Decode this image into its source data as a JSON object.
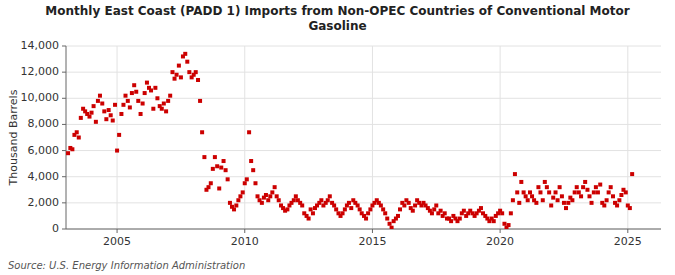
{
  "chart_data": {
    "type": "scatter",
    "title": "Monthly East Coast (PADD 1) Imports from Non-OPEC Countries of Conventional Motor\nGasoline",
    "ylabel": "Thousand Barrels",
    "source": "Source: U.S. Energy Information Administration",
    "color": "#cc0000",
    "marker": "square",
    "grid": true,
    "xlim": [
      2003.0,
      2026.3
    ],
    "xticks": [
      2005,
      2010,
      2015,
      2020,
      2025
    ],
    "ylim": [
      0,
      14000
    ],
    "yticks": [
      0,
      {
        "value": 2000,
        "label": "2,000"
      },
      {
        "value": 4000,
        "label": "4,000"
      },
      {
        "value": 6000,
        "label": "6,000"
      },
      {
        "value": 8000,
        "label": "8,000"
      },
      {
        "value": 10000,
        "label": "10,000"
      },
      {
        "value": 12000,
        "label": "12,000"
      },
      {
        "value": 14000,
        "label": "14,000"
      }
    ],
    "x": [
      2003.08,
      2003.17,
      2003.25,
      2003.33,
      2003.42,
      2003.5,
      2003.58,
      2003.67,
      2003.75,
      2003.83,
      2003.92,
      2004.0,
      2004.08,
      2004.17,
      2004.25,
      2004.33,
      2004.42,
      2004.5,
      2004.58,
      2004.67,
      2004.75,
      2004.83,
      2004.92,
      2005.0,
      2005.08,
      2005.17,
      2005.25,
      2005.33,
      2005.42,
      2005.5,
      2005.58,
      2005.67,
      2005.75,
      2005.83,
      2005.92,
      2006.0,
      2006.08,
      2006.17,
      2006.25,
      2006.33,
      2006.42,
      2006.5,
      2006.58,
      2006.67,
      2006.75,
      2006.83,
      2006.92,
      2007.0,
      2007.08,
      2007.17,
      2007.25,
      2007.33,
      2007.42,
      2007.5,
      2007.58,
      2007.67,
      2007.75,
      2007.83,
      2007.92,
      2008.0,
      2008.08,
      2008.17,
      2008.25,
      2008.33,
      2008.42,
      2008.5,
      2008.58,
      2008.67,
      2008.75,
      2008.83,
      2008.92,
      2009.0,
      2009.08,
      2009.17,
      2009.25,
      2009.33,
      2009.42,
      2009.5,
      2009.58,
      2009.67,
      2009.75,
      2009.83,
      2009.92,
      2010.0,
      2010.08,
      2010.17,
      2010.25,
      2010.33,
      2010.42,
      2010.5,
      2010.58,
      2010.67,
      2010.75,
      2010.83,
      2010.92,
      2011.0,
      2011.08,
      2011.17,
      2011.25,
      2011.33,
      2011.42,
      2011.5,
      2011.58,
      2011.67,
      2011.75,
      2011.83,
      2011.92,
      2012.0,
      2012.08,
      2012.17,
      2012.25,
      2012.33,
      2012.42,
      2012.5,
      2012.58,
      2012.67,
      2012.75,
      2012.83,
      2012.92,
      2013.0,
      2013.08,
      2013.17,
      2013.25,
      2013.33,
      2013.42,
      2013.5,
      2013.58,
      2013.67,
      2013.75,
      2013.83,
      2013.92,
      2014.0,
      2014.08,
      2014.17,
      2014.25,
      2014.33,
      2014.42,
      2014.5,
      2014.58,
      2014.67,
      2014.75,
      2014.83,
      2014.92,
      2015.0,
      2015.08,
      2015.17,
      2015.25,
      2015.33,
      2015.42,
      2015.5,
      2015.58,
      2015.67,
      2015.75,
      2015.83,
      2015.92,
      2016.0,
      2016.08,
      2016.17,
      2016.25,
      2016.33,
      2016.42,
      2016.5,
      2016.58,
      2016.67,
      2016.75,
      2016.83,
      2016.92,
      2017.0,
      2017.08,
      2017.17,
      2017.25,
      2017.33,
      2017.42,
      2017.5,
      2017.58,
      2017.67,
      2017.75,
      2017.83,
      2017.92,
      2018.0,
      2018.08,
      2018.17,
      2018.25,
      2018.33,
      2018.42,
      2018.5,
      2018.58,
      2018.67,
      2018.75,
      2018.83,
      2018.92,
      2019.0,
      2019.08,
      2019.17,
      2019.25,
      2019.33,
      2019.42,
      2019.5,
      2019.58,
      2019.67,
      2019.75,
      2019.83,
      2019.92,
      2020.0,
      2020.08,
      2020.17,
      2020.25,
      2020.33,
      2020.42,
      2020.5,
      2020.58,
      2020.67,
      2020.75,
      2020.83,
      2020.92,
      2021.0,
      2021.08,
      2021.17,
      2021.25,
      2021.33,
      2021.42,
      2021.5,
      2021.58,
      2021.67,
      2021.75,
      2021.83,
      2021.92,
      2022.0,
      2022.08,
      2022.17,
      2022.25,
      2022.33,
      2022.42,
      2022.5,
      2022.58,
      2022.67,
      2022.75,
      2022.83,
      2022.92,
      2023.0,
      2023.08,
      2023.17,
      2023.25,
      2023.33,
      2023.42,
      2023.5,
      2023.58,
      2023.67,
      2023.75,
      2023.83,
      2023.92,
      2024.0,
      2024.08,
      2024.17,
      2024.25,
      2024.33,
      2024.42,
      2024.5,
      2024.58,
      2024.67,
      2024.75,
      2024.83,
      2024.92,
      2025.0,
      2025.08,
      2025.17
    ],
    "values": [
      5800,
      6200,
      6100,
      7200,
      7400,
      7000,
      8500,
      9200,
      9000,
      8800,
      8600,
      8900,
      9400,
      8200,
      9800,
      10200,
      9600,
      9000,
      8400,
      9100,
      8700,
      8300,
      9500,
      6000,
      7200,
      8800,
      9500,
      10200,
      9800,
      9300,
      10400,
      11000,
      10500,
      9800,
      8800,
      9600,
      10400,
      11200,
      10800,
      10600,
      9200,
      10800,
      10000,
      9400,
      9200,
      9600,
      9000,
      9800,
      10200,
      12000,
      11500,
      11800,
      12500,
      11600,
      13200,
      13400,
      12800,
      12000,
      11600,
      11800,
      12000,
      11400,
      9800,
      7400,
      5500,
      3000,
      3200,
      3500,
      4600,
      5500,
      4800,
      3100,
      4700,
      5200,
      4500,
      3800,
      2000,
      1700,
      1500,
      1800,
      2200,
      2500,
      2800,
      3500,
      3800,
      7400,
      5200,
      4500,
      3500,
      2500,
      2200,
      2000,
      2400,
      2600,
      2200,
      2500,
      2800,
      3200,
      2500,
      2200,
      1800,
      1600,
      1400,
      1500,
      1800,
      2000,
      2200,
      2500,
      2200,
      2000,
      1800,
      1200,
      1000,
      800,
      1500,
      1200,
      1600,
      1800,
      2000,
      2200,
      1800,
      2000,
      2200,
      2500,
      2000,
      1800,
      1500,
      1200,
      1000,
      1200,
      1500,
      1800,
      2000,
      1600,
      2200,
      2000,
      1800,
      1500,
      1200,
      1000,
      800,
      1200,
      1500,
      1800,
      2000,
      2200,
      2000,
      1800,
      1500,
      1200,
      800,
      400,
      100,
      600,
      800,
      1000,
      1500,
      2000,
      1800,
      2200,
      2000,
      1600,
      1400,
      1800,
      2200,
      2000,
      1800,
      2000,
      1800,
      1600,
      1400,
      1200,
      1500,
      1800,
      1200,
      1400,
      1000,
      1200,
      800,
      800,
      600,
      1000,
      800,
      600,
      800,
      1200,
      1400,
      1000,
      1200,
      1400,
      1200,
      1000,
      1200,
      1400,
      1600,
      1200,
      1000,
      800,
      600,
      800,
      600,
      1000,
      1200,
      1400,
      1200,
      400,
      100,
      300,
      1200,
      2200,
      4200,
      2800,
      2000,
      3600,
      2800,
      2500,
      2200,
      2800,
      2500,
      2200,
      2000,
      3200,
      2800,
      2200,
      3600,
      3200,
      2800,
      1800,
      2400,
      2800,
      2200,
      3200,
      2500,
      2000,
      1600,
      2000,
      2400,
      2200,
      2800,
      3200,
      2800,
      2500,
      3200,
      3600,
      3000,
      2500,
      2000,
      2800,
      3200,
      2800,
      3400,
      2000,
      1800,
      2200,
      2800,
      3200,
      2500,
      2000,
      1800,
      2200,
      2600,
      3000,
      2800,
      1800,
      1600,
      4200
    ]
  }
}
